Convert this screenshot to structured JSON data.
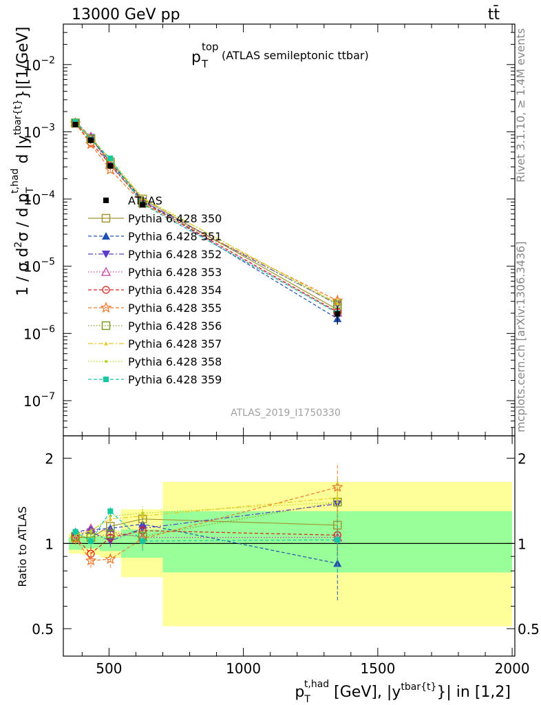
{
  "header": {
    "left": "13000 GeV pp",
    "right": "tt̄"
  },
  "side_labels": {
    "rivet": "Rivet 3.1.10, ≥ 1.4M events",
    "mcplots": "mcplots.cern.ch [arXiv:1306.3436]"
  },
  "chart_data": [
    {
      "type": "line",
      "panel": "main",
      "title": "p_T^top (ATLAS semileptonic ttbar)",
      "title_main": "p",
      "title_sub": "T",
      "title_sup": "top",
      "title_rest": "(ATLAS semileptonic ttbar)",
      "ylabel": "1 / σ d²σ / d p_T^{t,had} d |y^{tbar{t}}|[1/GeV]",
      "yscale": "log",
      "ylim": [
        3e-08,
        0.04
      ],
      "xlim": [
        330,
        2010
      ],
      "yticks": [
        {
          "v": 1e-07,
          "base": "10",
          "exp": "−7"
        },
        {
          "v": 1e-06,
          "base": "10",
          "exp": "−6"
        },
        {
          "v": 1e-05,
          "base": "10",
          "exp": "−5"
        },
        {
          "v": 0.0001,
          "base": "10",
          "exp": "−4"
        },
        {
          "v": 0.001,
          "base": "10",
          "exp": "−3"
        },
        {
          "v": 0.01,
          "base": "10",
          "exp": "−2"
        }
      ],
      "x": [
        375,
        432.5,
        505,
        625,
        1350
      ],
      "data": {
        "name": "ATLAS",
        "values": [
          0.00128,
          0.00075,
          0.00031,
          8.2e-05,
          1.95e-06
        ],
        "err": [
          6e-05,
          4e-05,
          2e-05,
          6e-06,
          6e-07
        ]
      },
      "watermark": "ATLAS_2019_I1750330",
      "legend_position": "middle-left"
    },
    {
      "type": "line",
      "panel": "ratio",
      "ylabel": "Ratio to ATLAS",
      "xlabel": "p_T^{t,had} [GeV], |y^{tbar{t}}| in [1,2]",
      "yscale": "log",
      "ylim": [
        0.4,
        2.4
      ],
      "xlim": [
        330,
        2010
      ],
      "yticks": [
        0.5,
        1,
        2
      ],
      "xticks": [
        500,
        1000,
        1500,
        2000
      ],
      "bins": [
        {
          "lo": 350,
          "hi": 400,
          "green": [
            0.95,
            1.05
          ],
          "yellow": [
            0.92,
            1.08
          ]
        },
        {
          "lo": 400,
          "hi": 465,
          "green": [
            0.96,
            1.06
          ],
          "yellow": [
            0.91,
            1.09
          ]
        },
        {
          "lo": 465,
          "hi": 545,
          "green": [
            0.94,
            1.06
          ],
          "yellow": [
            0.89,
            1.11
          ]
        },
        {
          "lo": 545,
          "hi": 700,
          "green": [
            0.89,
            1.12
          ],
          "yellow": [
            0.76,
            1.32
          ]
        },
        {
          "lo": 700,
          "hi": 2000,
          "green": [
            0.79,
            1.3
          ],
          "yellow": [
            0.51,
            1.65
          ]
        }
      ],
      "series": [
        {
          "name": "Pythia 6.428 350",
          "color": "#a09632",
          "marker": "square-open",
          "dash": "solid",
          "values": [
            1.05,
            1.05,
            1.15,
            1.22,
            1.16
          ],
          "err": [
            0.05,
            0.05,
            0.05,
            0.08,
            0.25
          ]
        },
        {
          "name": "Pythia 6.428 351",
          "color": "#1f4fb4",
          "marker": "triangle-up",
          "dash": "dashed",
          "values": [
            1.1,
            1.12,
            1.13,
            1.17,
            0.85
          ],
          "err": [
            0.05,
            0.05,
            0.05,
            0.08,
            0.22
          ]
        },
        {
          "name": "Pythia 6.428 352",
          "color": "#5a3cc8",
          "marker": "triangle-down",
          "dash": "dashdot",
          "values": [
            1.06,
            1.1,
            1.02,
            1.13,
            1.38
          ],
          "err": [
            0.05,
            0.05,
            0.05,
            0.08,
            0.3
          ]
        },
        {
          "name": "Pythia 6.428 353",
          "color": "#c83ca0",
          "marker": "triangle-open",
          "dash": "dotted",
          "values": [
            1.08,
            1.13,
            1.1,
            1.05,
            1.05
          ],
          "err": [
            0.05,
            0.05,
            0.05,
            0.08,
            0.24
          ]
        },
        {
          "name": "Pythia 6.428 354",
          "color": "#dc1e1e",
          "marker": "circle-open",
          "dash": "dashed",
          "values": [
            1.05,
            0.92,
            1.05,
            1.11,
            1.07
          ],
          "err": [
            0.05,
            0.05,
            0.05,
            0.08,
            0.24
          ]
        },
        {
          "name": "Pythia 6.428 355",
          "color": "#f07828",
          "marker": "star-open",
          "dash": "dashed",
          "values": [
            1.04,
            0.87,
            0.88,
            1.04,
            1.58
          ],
          "err": [
            0.05,
            0.05,
            0.06,
            0.08,
            0.35
          ]
        },
        {
          "name": "Pythia 6.428 356",
          "color": "#78a01e",
          "marker": "square-open",
          "dash": "dotted",
          "values": [
            1.06,
            1.05,
            1.08,
            1.06,
            1.4
          ],
          "err": [
            0.05,
            0.05,
            0.05,
            0.08,
            0.3
          ]
        },
        {
          "name": "Pythia 6.428 357",
          "color": "#e6c81e",
          "marker": "tri-small",
          "dash": "dashdot",
          "values": [
            1.07,
            1.11,
            1.22,
            1.25,
            1.45
          ],
          "err": [
            0.05,
            0.05,
            0.05,
            0.08,
            0.3
          ]
        },
        {
          "name": "Pythia 6.428 358",
          "color": "#b4d21e",
          "marker": "dot",
          "dash": "dotted",
          "values": [
            1.08,
            1.1,
            1.25,
            1.28,
            1.4
          ],
          "err": [
            0.05,
            0.05,
            0.05,
            0.08,
            0.3
          ]
        },
        {
          "name": "Pythia 6.428 359",
          "color": "#14c8a0",
          "marker": "square-filled",
          "dash": "dashed",
          "values": [
            1.1,
            1.02,
            1.3,
            1.02,
            1.03
          ],
          "err": [
            0.05,
            0.05,
            0.05,
            0.08,
            0.24
          ]
        }
      ]
    }
  ]
}
